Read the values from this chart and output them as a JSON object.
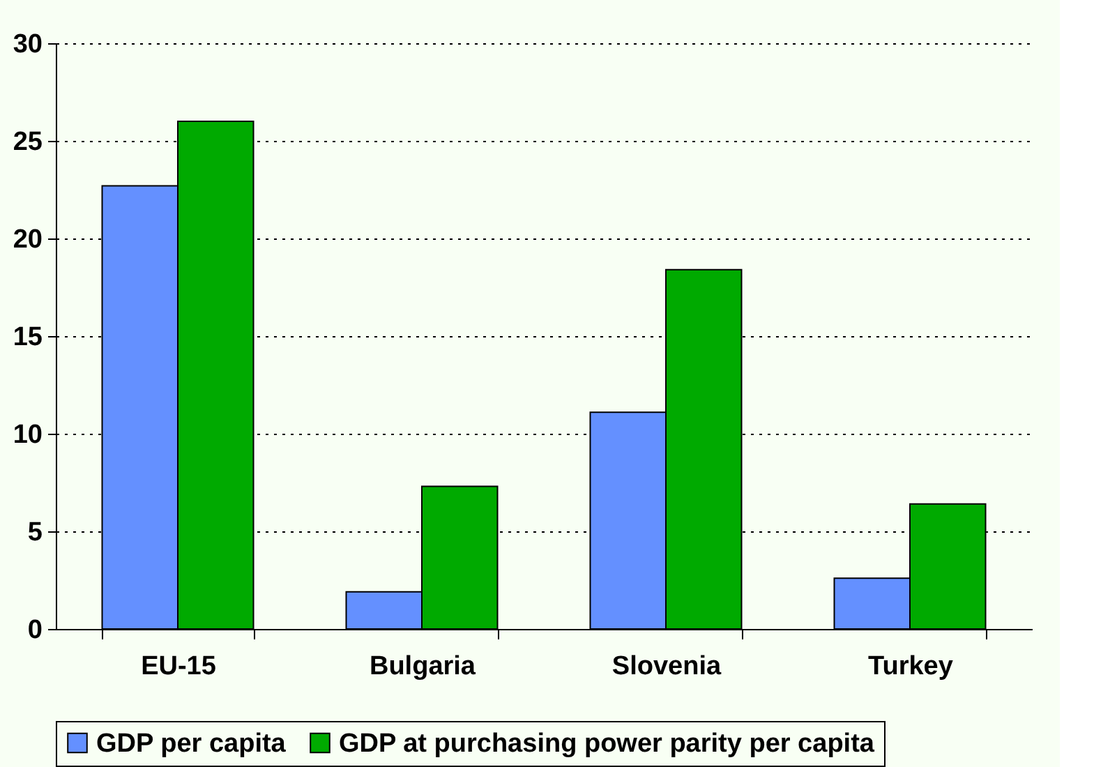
{
  "chart_data": {
    "type": "bar",
    "categories": [
      "EU-15",
      "Bulgaria",
      "Slovenia",
      "Turkey"
    ],
    "series": [
      {
        "name": "GDP per capita",
        "color": "#6490ff",
        "values": [
          22.7,
          1.9,
          11.1,
          2.6
        ]
      },
      {
        "name": "GDP at purchasing power parity per capita",
        "color": "#00aa00",
        "values": [
          26.0,
          7.3,
          18.4,
          6.4
        ]
      }
    ],
    "ylim": [
      0,
      30
    ],
    "yticks": [
      0,
      5,
      10,
      15,
      20,
      25,
      30
    ],
    "grid": "y",
    "legend": "bottom"
  }
}
